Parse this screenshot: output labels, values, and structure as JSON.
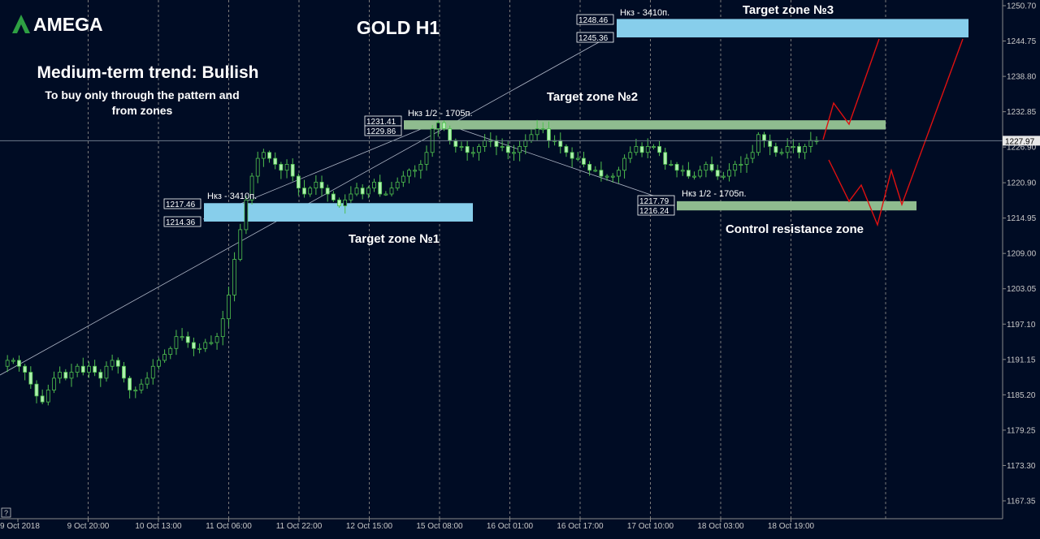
{
  "brand": {
    "name": "AMEGA"
  },
  "chart_data": {
    "type": "candlestick",
    "title": "GOLD H1",
    "trend_title": "Medium-term trend: Bullish",
    "trend_note_line1": "To buy only through the pattern  and",
    "trend_note_line2": "from zones",
    "ylim": [
      1162.5,
      1252.0
    ],
    "y_ticks": [
      "1250.70",
      "1244.75",
      "1238.80",
      "1232.85",
      "1226.90",
      "1220.90",
      "1214.95",
      "1209.00",
      "1203.05",
      "1197.10",
      "1191.15",
      "1185.20",
      "1179.25",
      "1173.30",
      "1167.35"
    ],
    "x_ticks": [
      "9 Oct 2018",
      "9 Oct 20:00",
      "10 Oct 13:00",
      "11 Oct 06:00",
      "11 Oct 22:00",
      "12 Oct 15:00",
      "15 Oct 08:00",
      "16 Oct 01:00",
      "16 Oct 17:00",
      "17 Oct 10:00",
      "18 Oct 03:00",
      "18 Oct 19:00"
    ],
    "current_price": "1227.97",
    "zones": [
      {
        "label": "Target zone №1",
        "top": "1217.46",
        "bottom": "1214.36",
        "top_value": 1217.46,
        "bottom_value": 1214.36,
        "note": "Нкз - 3410п.",
        "color": "#87ceeb"
      },
      {
        "label": "Target zone №2",
        "top": "1231.41",
        "bottom": "1229.86",
        "top_value": 1231.41,
        "bottom_value": 1229.86,
        "note": "Нкз 1/2 - 1705п.",
        "color": "#8fbc8f"
      },
      {
        "label": "Target zone №3",
        "top": "1248.46",
        "bottom": "1245.36",
        "top_value": 1248.46,
        "bottom_value": 1245.36,
        "note": "Нкз - 3410п.",
        "color": "#87ceeb"
      },
      {
        "label": "Control resistance zone",
        "top": "1217.79",
        "bottom": "1216.24",
        "top_value": 1217.79,
        "bottom_value": 1216.24,
        "note": "Нкз 1/2 - 1705п.",
        "color": "#8fbc8f"
      }
    ],
    "close_series": [
      1190,
      1191,
      1191,
      1190,
      1189,
      1187,
      1185,
      1184,
      1186,
      1188,
      1189,
      1188,
      1189,
      1190,
      1189,
      1190,
      1189,
      1188,
      1190,
      1191,
      1190,
      1188,
      1186,
      1186,
      1187,
      1188,
      1190,
      1191,
      1192,
      1193,
      1195,
      1195,
      1194,
      1193,
      1193,
      1194,
      1194,
      1195,
      1198,
      1202,
      1208,
      1213,
      1218,
      1222,
      1225,
      1226,
      1225,
      1224,
      1223,
      1224,
      1222,
      1220,
      1219,
      1220,
      1221,
      1220,
      1219,
      1218,
      1217,
      1218,
      1219,
      1220,
      1219,
      1220,
      1221,
      1219,
      1219,
      1220,
      1221,
      1222,
      1223,
      1223,
      1224,
      1226,
      1230,
      1231,
      1230,
      1228,
      1227,
      1227,
      1226,
      1226,
      1227,
      1228,
      1228,
      1227,
      1227,
      1226,
      1226,
      1227,
      1228,
      1229,
      1230,
      1230,
      1228,
      1228,
      1227,
      1226,
      1225,
      1225,
      1224,
      1223,
      1223,
      1222,
      1222,
      1222,
      1223,
      1225,
      1226,
      1227,
      1226,
      1227,
      1227,
      1226,
      1224,
      1224,
      1223,
      1223,
      1222,
      1222,
      1223,
      1224,
      1223,
      1222,
      1222,
      1223,
      1224,
      1224,
      1225,
      1226,
      1229,
      1228,
      1227,
      1226,
      1226,
      1227,
      1227,
      1226,
      1227,
      1228,
      1228
    ]
  }
}
